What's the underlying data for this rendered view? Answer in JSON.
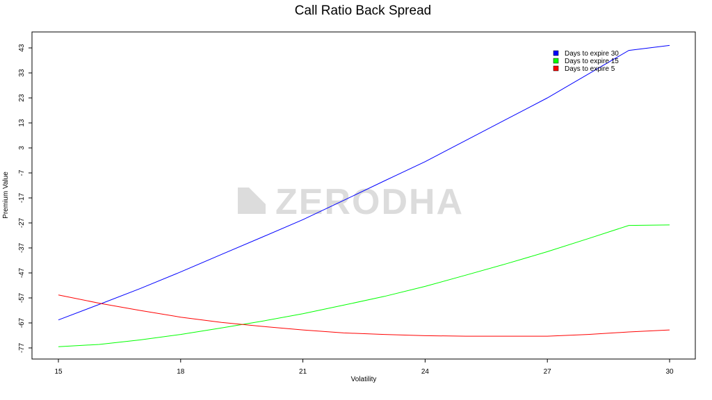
{
  "chart_data": {
    "type": "line",
    "title": "Call Ratio Back Spread",
    "xlabel": "Volatility",
    "ylabel": "Premium Value",
    "xlim": [
      15,
      30
    ],
    "ylim": [
      -77,
      43
    ],
    "x_ticks": [
      15,
      18,
      21,
      24,
      27,
      30
    ],
    "y_ticks": [
      43,
      33,
      23,
      13,
      3,
      -7,
      -17,
      -27,
      -37,
      -47,
      -57,
      -67,
      -77
    ],
    "grid": false,
    "legend_position": "top-right",
    "series": [
      {
        "name": "Days to expire 30",
        "color": "#0000ff",
        "x": [
          15,
          16,
          17,
          18,
          19,
          20,
          21,
          22,
          23,
          24,
          25,
          26,
          27,
          28,
          29,
          30
        ],
        "y": [
          -65.8,
          -59.6,
          -53.3,
          -46.6,
          -39.6,
          -32.7,
          -25.7,
          -18.0,
          -10.2,
          -2.5,
          6.0,
          14.5,
          23.0,
          32.5,
          42.0,
          44.0
        ]
      },
      {
        "name": "Days to expire 15",
        "color": "#00ff00",
        "x": [
          15,
          16,
          17,
          18,
          19,
          20,
          21,
          22,
          23,
          24,
          25,
          26,
          27,
          28,
          29,
          30
        ],
        "y": [
          -76.5,
          -75.6,
          -73.8,
          -71.6,
          -69.0,
          -66.3,
          -63.3,
          -59.9,
          -56.4,
          -52.4,
          -47.9,
          -43.3,
          -38.5,
          -33.3,
          -28.0,
          -27.8
        ]
      },
      {
        "name": "Days to expire 5",
        "color": "#ff0000",
        "x": [
          15,
          16,
          17,
          18,
          19,
          20,
          21,
          22,
          23,
          24,
          25,
          26,
          27,
          28,
          29,
          30
        ],
        "y": [
          -55.8,
          -59.1,
          -62.0,
          -64.7,
          -66.8,
          -68.4,
          -69.8,
          -71.0,
          -71.6,
          -72.1,
          -72.3,
          -72.3,
          -72.3,
          -71.6,
          -70.6,
          -69.8
        ]
      }
    ]
  },
  "watermark": {
    "text": "ZERODHA",
    "icon": "zerodha-logo-icon",
    "color": "#dcdcdc"
  }
}
